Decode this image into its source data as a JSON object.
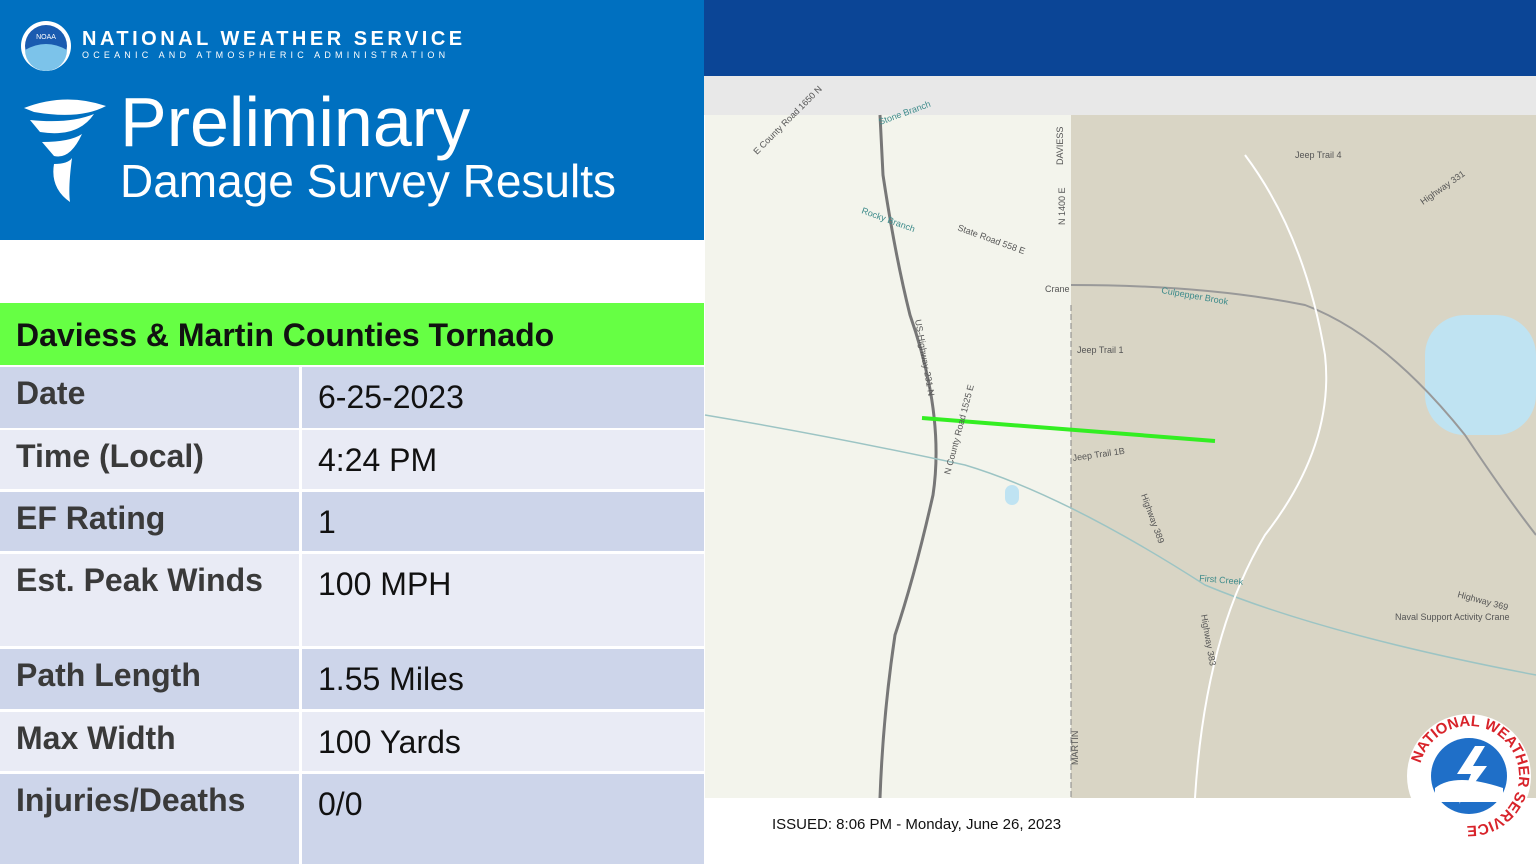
{
  "header": {
    "org": "NATIONAL WEATHER SERVICE",
    "org_sub": "OCEANIC AND ATMOSPHERIC ADMINISTRATION",
    "logo_text": "NOAA",
    "title": "Preliminary",
    "subtitle": "Damage Survey Results"
  },
  "table": {
    "title": "Daviess & Martin Counties Tornado",
    "rows": [
      [
        "Date",
        "6-25-2023"
      ],
      [
        "Time (Local)",
        "4:24 PM"
      ],
      [
        "EF Rating",
        "1"
      ],
      [
        "Est. Peak Winds",
        "100 MPH"
      ],
      [
        "Path Length",
        "1.55 Miles"
      ],
      [
        "Max Width",
        "100 Yards"
      ],
      [
        "Injuries/Deaths",
        "0/0"
      ]
    ]
  },
  "map": {
    "labels": [
      "Crane",
      "Jeep Trail 4",
      "Jeep Trail 1",
      "Jeep Trail 1B",
      "Culpepper Brook",
      "First Creek",
      "Rocky Branch",
      "Stone Branch",
      "DAVIESS",
      "MARTIN",
      "Highway 389",
      "Highway 383",
      "Naval Support Activity Crane",
      "US-Highway-231-N",
      "N County Road 1525 E",
      "State Road 558 E",
      "E County Road 1650 N",
      "N 1400 E",
      "Highway 331",
      "Highway 369"
    ],
    "issued": "ISSUED: 8:06 PM - Monday, June 26, 2023"
  },
  "badge": {
    "text": "NATIONAL WEATHER SERVICE"
  }
}
